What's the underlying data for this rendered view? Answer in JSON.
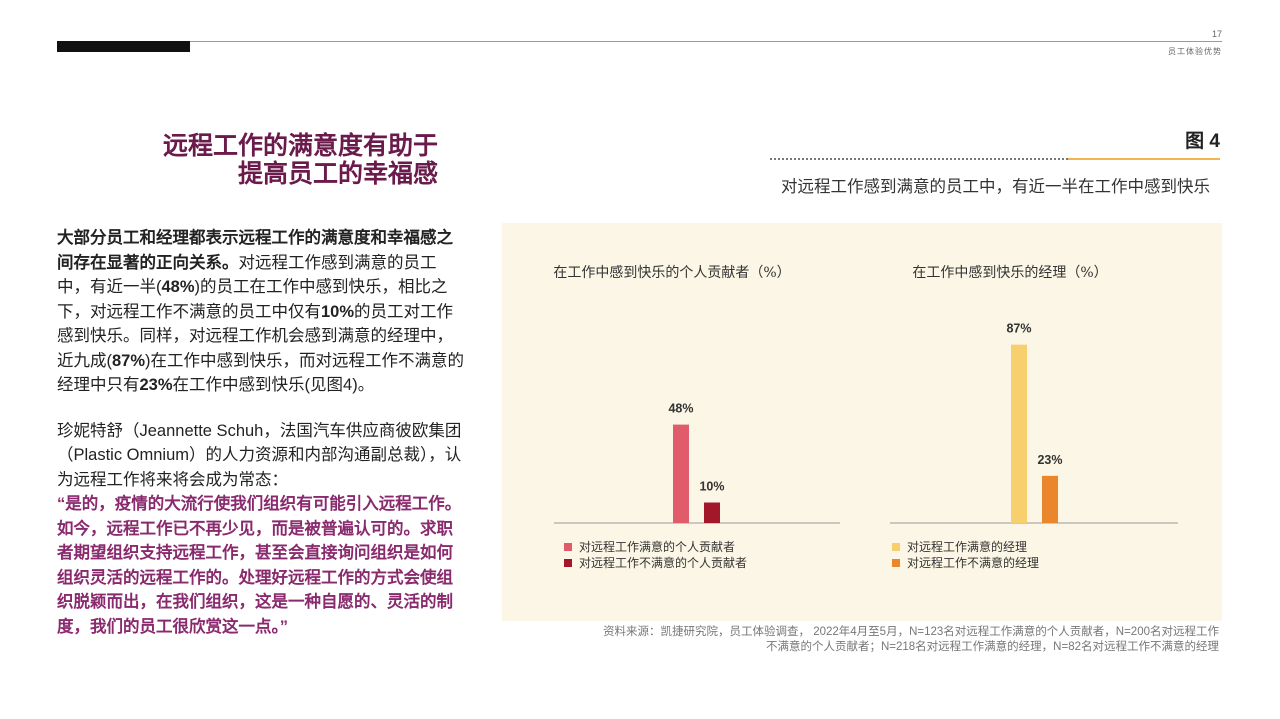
{
  "page": {
    "number": "17",
    "section": "员工体验优势"
  },
  "title": {
    "line1": "远程工作的满意度有助于",
    "line2": "提高员工的幸福感"
  },
  "body": {
    "p1_bold": "大部分员工和经理都表示远程工作的满意度和幸福感之间存在显著的正向关系。",
    "p1_a": "对远程工作感到满意的员工中，有近一半(",
    "p1_b": "48%",
    "p1_c": ")的员工在工作中感到快乐，相比之下，对远程工作不满意的员工中仅有",
    "p1_d": "10%",
    "p1_e": "的员工对工作感到快乐。同样，对远程工作机会感到满意的经理中，近九成(",
    "p1_f": "87%",
    "p1_g": ")在工作中感到快乐，而对远程工作不满意的经理中只有",
    "p1_h": "23%",
    "p1_i": "在工作中感到快乐(见图4)。",
    "p2": "珍妮特舒（Jeannette Schuh，法国汽车供应商彼欧集团（Plastic Omnium）的人力资源和内部沟通副总裁），认为远程工作将来将会成为常态：",
    "quote": "“是的，疫情的大流行使我们组织有可能引入远程工作。如今，远程工作已不再少见，而是被普遍认可的。求职者期望组织支持远程工作，甚至会直接询问组织是如何组织灵活的远程工作的。处理好远程工作的方式会使组织脱颖而出，在我们组织，这是一种自愿的、灵活的制度，我们的员工很欣赏这一点。”"
  },
  "figure": {
    "label": "图 4",
    "subtitle": "对远程工作感到满意的员工中，有近一半在工作中感到快乐"
  },
  "chart_data": [
    {
      "type": "bar",
      "title": "在工作中感到快乐的个人贡献者（%）",
      "categories": [
        "对远程工作满意的个人贡献者",
        "对远程工作不满意的个人贡献者"
      ],
      "values": [
        48,
        10
      ],
      "labels": [
        "48%",
        "10%"
      ],
      "colors": [
        "#e05c6a",
        "#a3172a"
      ],
      "ylim": [
        0,
        100
      ],
      "legend": "bottom"
    },
    {
      "type": "bar",
      "title": "在工作中感到快乐的经理（%）",
      "categories": [
        "对远程工作满意的经理",
        "对远程工作不满意的经理"
      ],
      "values": [
        87,
        23
      ],
      "labels": [
        "87%",
        "23%"
      ],
      "colors": [
        "#f8cf6f",
        "#ea862c"
      ],
      "ylim": [
        0,
        100
      ],
      "legend": "bottom"
    }
  ],
  "source": {
    "line1": "资料来源：凯捷研究院，员工体验调查， 2022年4月至5月，N=123名对远程工作满意的个人贡献者，N=200名对远程工作",
    "line2": "不满意的个人贡献者；N=218名对远程工作满意的经理，N=82名对远程工作不满意的经理"
  }
}
